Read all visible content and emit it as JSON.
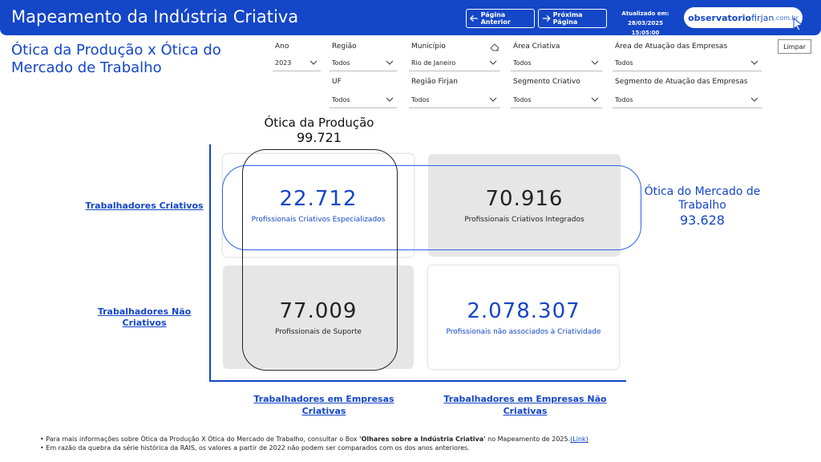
{
  "header": {
    "title": "Mapeamento da Indústria Criativa",
    "prev_label": "Página Anterior",
    "next_label": "Próxima Página",
    "updated_label": "Atualizado em:",
    "updated_value": "28/03/2025 15:05:00",
    "logo_text_bold": "observatorio",
    "logo_text_light": "firjan",
    "logo_suffix": ".com.br"
  },
  "page_title": "Ótica da Produção x Ótica do Mercado de Trabalho",
  "filters": {
    "ano": {
      "label": "Ano",
      "value": "2023"
    },
    "regiao": {
      "label": "Região",
      "value": "Todos"
    },
    "municipio": {
      "label": "Município",
      "value": "Rio de Janeiro"
    },
    "area_criativa": {
      "label": "Área Criativa",
      "value": "Todos"
    },
    "area_atuacao": {
      "label": "Área de Atuação das Empresas",
      "value": "Todos"
    },
    "uf": {
      "label": "UF",
      "value": "Todos"
    },
    "regiao_firjan": {
      "label": "Região Firjan",
      "value": "Todos"
    },
    "segmento_criativo": {
      "label": "Segmento Criativo",
      "value": "Todos"
    },
    "segmento_atuacao": {
      "label": "Segmento de Atuação das Empresas",
      "value": "Todos"
    },
    "limpar": "Limpar"
  },
  "matrix": {
    "producao_label": "Ótica da Produção",
    "producao_value": "99.721",
    "mercado_label": "Ótica do Mercado de Trabalho",
    "mercado_value": "93.628",
    "row1_label": "Trabalhadores Criativos",
    "row2_label": "Trabalhadores Não Criativos",
    "col1_label": "Trabalhadores em Empresas Criativas",
    "col2_label": "Trabalhadores em Empresas Não Criativas",
    "cards": {
      "tl": {
        "value": "22.712",
        "desc": "Profissionais Criativos Especializados"
      },
      "tr": {
        "value": "70.916",
        "desc": "Profissionais Criativos Integrados"
      },
      "bl": {
        "value": "77.009",
        "desc": "Profissionais de Suporte"
      },
      "br": {
        "value": "2.078.307",
        "desc": "Profissionais não associados à Criatividade"
      }
    }
  },
  "footnotes": {
    "line1_pre": "• Para mais informações sobre Ótica da Produção X Ótica do Mercado de Trabalho, consultar o Box ",
    "line1_bold": "'Olhares sobre a Indústria Criativa'",
    "line1_post": " no Mapeamento de 2025.",
    "line1_link": "(Link)",
    "line2": "• Em razão da quebra da série histórica da RAIS, os valores a partir de 2022 não podem ser comparados com os dos anos anteriores."
  },
  "colors": {
    "brand": "#1446c8",
    "card_grey": "#e6e6e6"
  }
}
